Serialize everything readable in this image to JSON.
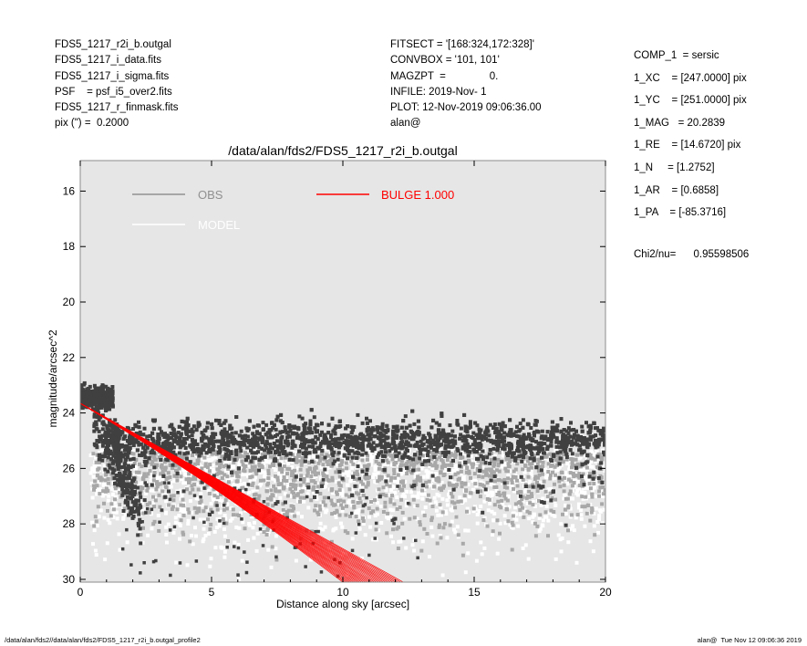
{
  "header_left": [
    "FDS5_1217_r2i_b.outgal",
    "FDS5_1217_i_data.fits",
    "FDS5_1217_i_sigma.fits",
    "PSF    = psf_i5_over2.fits",
    "FDS5_1217_r_finmask.fits",
    "pix (\") =  0.2000"
  ],
  "header_mid": [
    "FITSECT = '[168:324,172:328]'",
    "CONVBOX = '101, 101'",
    "MAGZPT  =               0.",
    "INFILE: 2019-Nov- 1",
    "PLOT: 12-Nov-2019 09:06:36.00",
    "alan@"
  ],
  "params": [
    "COMP_1  = sersic",
    "1_XC    = [247.0000] pix",
    "1_YC    = [251.0000] pix",
    "1_MAG   = 20.2839",
    "1_RE    = [14.6720] pix",
    "1_N     = [1.2752]",
    "1_AR    = [0.6858]",
    "1_PA    = [-85.3716]"
  ],
  "chi2": "Chi2/nu=      0.95598506",
  "footer_left": "/data/alan/fds2//data/alan/fds2/FDS5_1217_r2i_b.outgal_profile2",
  "footer_right": "alan@  Tue Nov 12 09:06:36 2019",
  "colors": {
    "background": "#e6e6e6",
    "obs_dark": "#404040",
    "obs_light": "#a8a8a8",
    "model": "#ffffff",
    "bulge": "#ff0000",
    "frame": "#8c8c8c"
  },
  "chart_data": {
    "type": "scatter",
    "title": "/data/alan/fds2/FDS5_1217_r2i_b.outgal",
    "xlabel": "Distance along sky [arcsec]",
    "ylabel": "magnitude/arcsec^2",
    "xlim": [
      0,
      20
    ],
    "ylim": [
      30.1,
      14.9
    ],
    "y_inverted": true,
    "x_ticks": [
      0,
      5,
      10,
      15,
      20
    ],
    "y_ticks": [
      16,
      18,
      20,
      22,
      24,
      26,
      28,
      30
    ],
    "legend": [
      {
        "label": "OBS",
        "color": "#909090"
      },
      {
        "label": "MODEL",
        "color": "#ffffff"
      },
      {
        "label": "BULGE  1.000",
        "color": "#ff0000"
      }
    ],
    "series": [
      {
        "name": "OBS",
        "description_points": "dark: sky-level cloud centered near 25.0 spreading 24.3-26.5 across x 1-20, core 23.0-24.0 at x<1.2, falling branch from 24 at x=0.5 to ~28 at x=2",
        "sky_level": 25.0,
        "core_mag": 23.4,
        "core_radius": 1.2
      },
      {
        "name": "MODEL",
        "sky_level": 25.8,
        "spread": [
          25.2,
          30.0
        ]
      },
      {
        "name": "BULGE  1.000",
        "start": [
          0.0,
          23.65
        ],
        "inner_edge_end": [
          10.0,
          30.1
        ],
        "outer_edge_end": [
          12.3,
          30.1
        ]
      }
    ]
  }
}
